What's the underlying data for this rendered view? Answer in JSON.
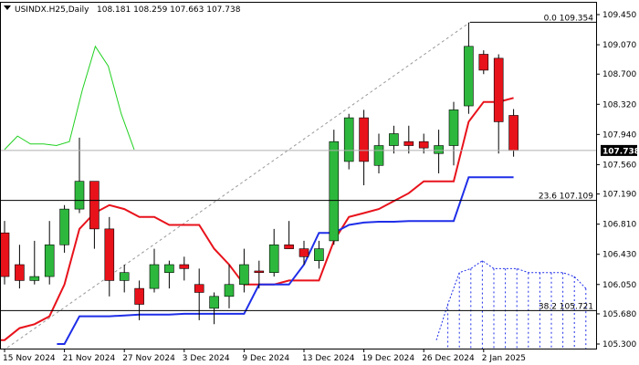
{
  "header": {
    "symbol": "USINDX.H25,Daily",
    "ohlc": "108.181 108.259 107.663 107.738"
  },
  "current_price_label": "107.738",
  "colors": {
    "bull": "#2db83d",
    "bear": "#e8121b",
    "fast_line": "#e8121b",
    "slow_line": "#1f2ee8",
    "green_line": "#21d121",
    "cloud": "#1f2ee8",
    "trend": "#9a9a9a",
    "axis": "#000000",
    "price_badge": "#000000"
  },
  "chart_data": {
    "type": "candlestick",
    "title": "USINDX.H25,Daily",
    "ylim": [
      105.3,
      109.55
    ],
    "yticks": [
      "109.450",
      "109.070",
      "108.700",
      "108.320",
      "107.940",
      "107.560",
      "107.190",
      "106.810",
      "106.430",
      "106.050",
      "105.680",
      "105.300"
    ],
    "ytick_values": [
      109.45,
      109.07,
      108.7,
      108.32,
      107.94,
      107.56,
      107.19,
      106.81,
      106.43,
      106.05,
      105.68,
      105.3
    ],
    "x_ticks": [
      {
        "index": 0,
        "label": "15 Nov 2024"
      },
      {
        "index": 4,
        "label": "21 Nov 2024"
      },
      {
        "index": 8,
        "label": "27 Nov 2024"
      },
      {
        "index": 12,
        "label": "3 Dec 2024"
      },
      {
        "index": 16,
        "label": "9 Dec 2024"
      },
      {
        "index": 20,
        "label": "13 Dec 2024"
      },
      {
        "index": 24,
        "label": "19 Dec 2024"
      },
      {
        "index": 28,
        "label": "26 Dec 2024"
      },
      {
        "index": 32,
        "label": "2 Jan 2025"
      }
    ],
    "candles": [
      {
        "o": 106.7,
        "h": 106.85,
        "l": 106.05,
        "c": 106.15
      },
      {
        "o": 106.3,
        "h": 106.55,
        "l": 106.0,
        "c": 106.1
      },
      {
        "o": 106.1,
        "h": 106.6,
        "l": 106.05,
        "c": 106.15
      },
      {
        "o": 106.15,
        "h": 106.85,
        "l": 106.05,
        "c": 106.55
      },
      {
        "o": 106.55,
        "h": 107.05,
        "l": 106.45,
        "c": 107.0
      },
      {
        "o": 107.0,
        "h": 107.9,
        "l": 106.95,
        "c": 107.35
      },
      {
        "o": 107.35,
        "h": 107.35,
        "l": 106.5,
        "c": 106.75
      },
      {
        "o": 106.75,
        "h": 106.9,
        "l": 105.9,
        "c": 106.1
      },
      {
        "o": 106.1,
        "h": 106.3,
        "l": 105.95,
        "c": 106.2
      },
      {
        "o": 106.0,
        "h": 106.1,
        "l": 105.6,
        "c": 105.8
      },
      {
        "o": 106.0,
        "h": 106.5,
        "l": 105.95,
        "c": 106.3
      },
      {
        "o": 106.2,
        "h": 106.35,
        "l": 106.0,
        "c": 106.3
      },
      {
        "o": 106.3,
        "h": 106.4,
        "l": 106.1,
        "c": 106.25
      },
      {
        "o": 106.05,
        "h": 106.25,
        "l": 105.6,
        "c": 105.95
      },
      {
        "o": 105.75,
        "h": 105.95,
        "l": 105.55,
        "c": 105.9
      },
      {
        "o": 105.9,
        "h": 106.3,
        "l": 105.75,
        "c": 106.05
      },
      {
        "o": 106.05,
        "h": 106.5,
        "l": 105.95,
        "c": 106.3
      },
      {
        "o": 106.22,
        "h": 106.35,
        "l": 106.0,
        "c": 106.2
      },
      {
        "o": 106.2,
        "h": 106.75,
        "l": 106.15,
        "c": 106.55
      },
      {
        "o": 106.55,
        "h": 106.85,
        "l": 106.5,
        "c": 106.5
      },
      {
        "o": 106.5,
        "h": 106.6,
        "l": 106.3,
        "c": 106.4
      },
      {
        "o": 106.35,
        "h": 106.6,
        "l": 106.25,
        "c": 106.5
      },
      {
        "o": 106.6,
        "h": 108.0,
        "l": 106.55,
        "c": 107.85
      },
      {
        "o": 107.6,
        "h": 108.2,
        "l": 107.5,
        "c": 108.15
      },
      {
        "o": 108.15,
        "h": 108.25,
        "l": 107.3,
        "c": 107.6
      },
      {
        "o": 107.55,
        "h": 107.95,
        "l": 107.45,
        "c": 107.8
      },
      {
        "o": 107.8,
        "h": 108.05,
        "l": 107.7,
        "c": 107.95
      },
      {
        "o": 107.85,
        "h": 108.05,
        "l": 107.7,
        "c": 107.8
      },
      {
        "o": 107.85,
        "h": 107.95,
        "l": 107.7,
        "c": 107.77
      },
      {
        "o": 107.7,
        "h": 108.0,
        "l": 107.45,
        "c": 107.8
      },
      {
        "o": 107.8,
        "h": 108.35,
        "l": 107.55,
        "c": 108.25
      },
      {
        "o": 108.3,
        "h": 109.35,
        "l": 108.2,
        "c": 109.05
      },
      {
        "o": 108.95,
        "h": 109.0,
        "l": 108.7,
        "c": 108.75
      },
      {
        "o": 108.9,
        "h": 108.95,
        "l": 107.7,
        "c": 108.1
      },
      {
        "o": 108.18,
        "h": 108.26,
        "l": 107.66,
        "c": 107.74
      }
    ],
    "indicators": {
      "fast_line": [
        105.35,
        105.5,
        105.55,
        105.65,
        106.05,
        106.75,
        106.95,
        107.05,
        107.0,
        106.9,
        106.9,
        106.8,
        106.8,
        106.8,
        106.5,
        106.3,
        106.05,
        106.05,
        106.05,
        106.1,
        106.1,
        106.1,
        106.6,
        106.9,
        106.95,
        107.0,
        107.1,
        107.2,
        107.35,
        107.35,
        107.35,
        108.1,
        108.35,
        108.35,
        108.4
      ],
      "slow_line": [
        null,
        null,
        null,
        null,
        105.3,
        105.65,
        105.65,
        105.65,
        105.66,
        105.67,
        105.67,
        105.67,
        105.68,
        105.68,
        105.68,
        105.68,
        105.68,
        106.05,
        106.05,
        106.05,
        106.3,
        106.7,
        106.7,
        106.8,
        106.83,
        106.84,
        106.84,
        106.85,
        106.85,
        106.85,
        106.85,
        107.4,
        107.4,
        107.4,
        107.4
      ],
      "green_line": [
        107.75,
        107.92,
        107.82,
        107.82,
        107.8,
        107.85,
        108.5,
        109.05,
        108.8,
        108.2,
        107.75
      ],
      "cloud_top": [
        105.35,
        105.8,
        106.2,
        106.25,
        106.35,
        106.25,
        106.25,
        106.25,
        106.2,
        106.2,
        106.2,
        106.2,
        106.15,
        106.0
      ]
    },
    "fib_levels": [
      {
        "label": "0.0 109.354",
        "value": 109.354
      },
      {
        "label": "23.6 107.109",
        "value": 107.109
      },
      {
        "label": "38.2 105.721",
        "value": 105.721
      }
    ]
  }
}
